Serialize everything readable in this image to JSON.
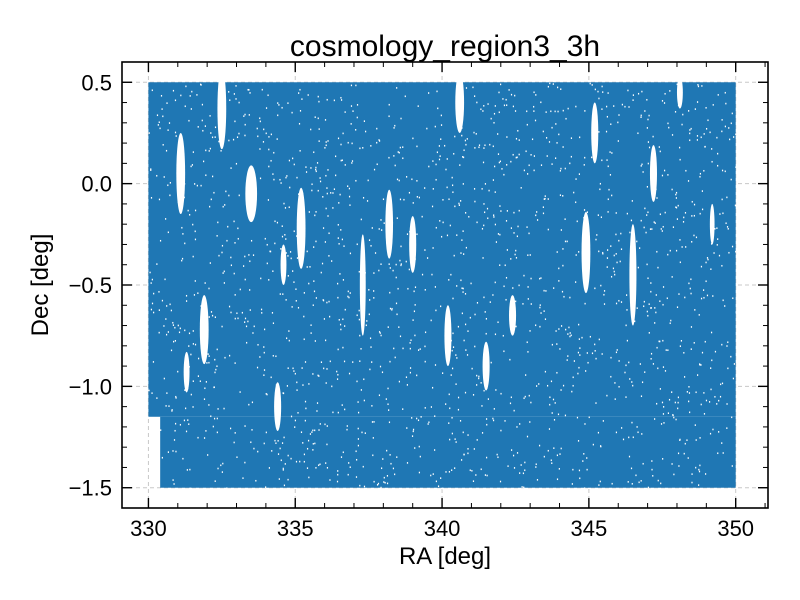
{
  "chart_data": {
    "type": "scatter",
    "title": "cosmology_region3_3h",
    "xlabel": "RA [deg]",
    "ylabel": "Dec [deg]",
    "xlim": [
      329.1,
      351.1
    ],
    "ylim": [
      -1.6,
      0.6
    ],
    "xticks": [
      330,
      335,
      340,
      345,
      350
    ],
    "xtick_labels": [
      "330",
      "335",
      "340",
      "345",
      "350"
    ],
    "yticks": [
      -1.5,
      -1.0,
      -0.5,
      0.0,
      0.5
    ],
    "ytick_labels": [
      "−1.5",
      "−1.0",
      "−0.5",
      "0.0",
      "0.5"
    ],
    "grid": true,
    "point_color": "#1f77b4",
    "footprint": {
      "ra_range": [
        330.0,
        350.0
      ],
      "dec_range": [
        -1.5,
        0.5
      ],
      "lower_edge_ra_range": [
        330.4,
        350.0
      ],
      "lower_edge_dec": -1.5
    },
    "masked_holes": [
      {
        "ra": 331.1,
        "dec": 0.05,
        "ra_halfwidth": 0.15,
        "dec_halfheight": 0.2
      },
      {
        "ra": 332.5,
        "dec": 0.37,
        "ra_halfwidth": 0.15,
        "dec_halfheight": 0.2
      },
      {
        "ra": 333.5,
        "dec": -0.05,
        "ra_halfwidth": 0.2,
        "dec_halfheight": 0.14
      },
      {
        "ra": 335.2,
        "dec": -0.22,
        "ra_halfwidth": 0.15,
        "dec_halfheight": 0.2
      },
      {
        "ra": 334.6,
        "dec": -0.4,
        "ra_halfwidth": 0.1,
        "dec_halfheight": 0.1
      },
      {
        "ra": 334.4,
        "dec": -1.1,
        "ra_halfwidth": 0.12,
        "dec_halfheight": 0.12
      },
      {
        "ra": 331.9,
        "dec": -0.72,
        "ra_halfwidth": 0.15,
        "dec_halfheight": 0.17
      },
      {
        "ra": 331.3,
        "dec": -0.93,
        "ra_halfwidth": 0.1,
        "dec_halfheight": 0.1
      },
      {
        "ra": 337.3,
        "dec": -0.5,
        "ra_halfwidth": 0.1,
        "dec_halfheight": 0.25
      },
      {
        "ra": 338.2,
        "dec": -0.2,
        "ra_halfwidth": 0.13,
        "dec_halfheight": 0.17
      },
      {
        "ra": 339.0,
        "dec": -0.3,
        "ra_halfwidth": 0.12,
        "dec_halfheight": 0.14
      },
      {
        "ra": 340.2,
        "dec": -0.75,
        "ra_halfwidth": 0.12,
        "dec_halfheight": 0.15
      },
      {
        "ra": 340.6,
        "dec": 0.4,
        "ra_halfwidth": 0.15,
        "dec_halfheight": 0.15
      },
      {
        "ra": 341.5,
        "dec": -0.9,
        "ra_halfwidth": 0.12,
        "dec_halfheight": 0.12
      },
      {
        "ra": 342.4,
        "dec": -0.65,
        "ra_halfwidth": 0.12,
        "dec_halfheight": 0.1
      },
      {
        "ra": 344.9,
        "dec": -0.34,
        "ra_halfwidth": 0.15,
        "dec_halfheight": 0.2
      },
      {
        "ra": 345.2,
        "dec": 0.25,
        "ra_halfwidth": 0.12,
        "dec_halfheight": 0.15
      },
      {
        "ra": 346.5,
        "dec": -0.45,
        "ra_halfwidth": 0.12,
        "dec_halfheight": 0.25
      },
      {
        "ra": 347.2,
        "dec": 0.05,
        "ra_halfwidth": 0.12,
        "dec_halfheight": 0.14
      },
      {
        "ra": 348.1,
        "dec": 0.45,
        "ra_halfwidth": 0.1,
        "dec_halfheight": 0.08
      },
      {
        "ra": 349.2,
        "dec": -0.2,
        "ra_halfwidth": 0.08,
        "dec_halfheight": 0.1
      }
    ]
  }
}
